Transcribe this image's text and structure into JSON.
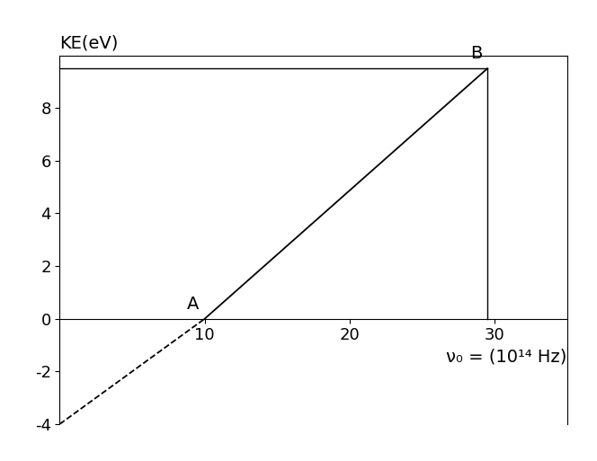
{
  "chart_data": {
    "type": "line",
    "x_label": "ν₀ = (10¹⁴ Hz)",
    "y_label": "KE(eV)",
    "x": [
      0,
      10,
      29.5
    ],
    "series": [
      {
        "values": [
          -4,
          0,
          null
        ],
        "color": "#000000",
        "line_style": "dashed"
      },
      {
        "values": [
          null,
          0,
          9.5
        ],
        "color": "#000000",
        "line_style": "solid"
      }
    ],
    "annotations": [
      {
        "text": "A",
        "x": 10,
        "y": 0
      },
      {
        "text": "B",
        "x": 29.5,
        "y": 9.5
      }
    ],
    "xlim": [
      0,
      35
    ],
    "ylim": [
      -4,
      10
    ],
    "xticks": [
      10,
      20,
      30
    ],
    "yticks": [
      -4,
      -2,
      0,
      2,
      4,
      6,
      8
    ],
    "grid": false
  }
}
